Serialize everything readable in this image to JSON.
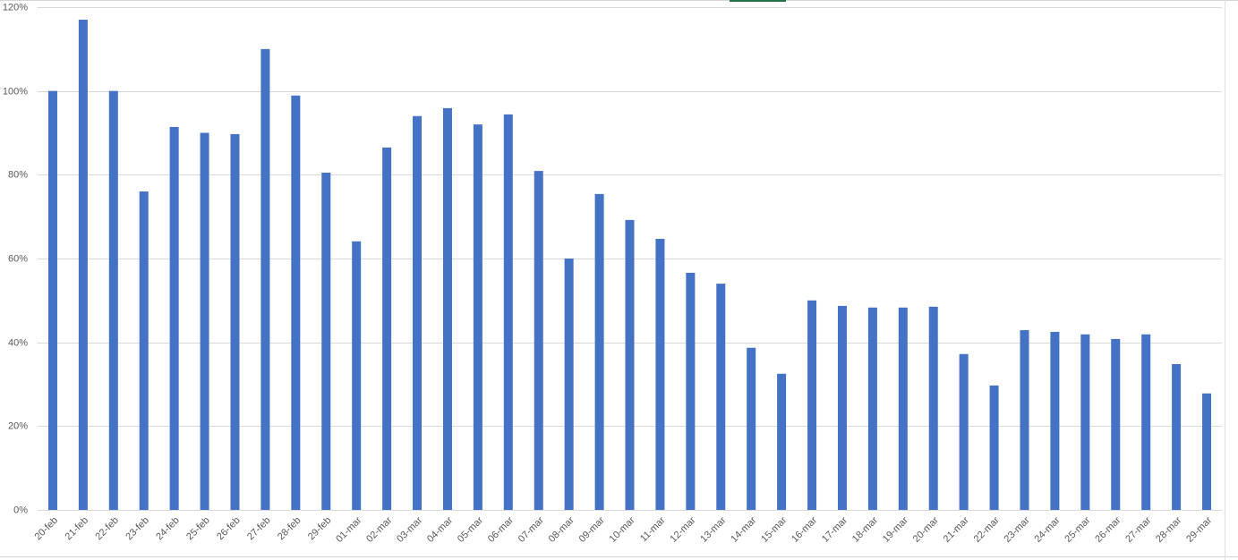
{
  "chart_data": {
    "type": "bar",
    "categories": [
      "20-feb",
      "21-feb",
      "22-feb",
      "23-feb",
      "24-feb",
      "25-feb",
      "26-feb",
      "27-feb",
      "28-feb",
      "29-feb",
      "01-mar",
      "02-mar",
      "03-mar",
      "04-mar",
      "05-mar",
      "06-mar",
      "07-mar",
      "08-mar",
      "09-mar",
      "10-mar",
      "11-mar",
      "12-mar",
      "13-mar",
      "14-mar",
      "15-mar",
      "16-mar",
      "17-mar",
      "18-mar",
      "19-mar",
      "20-mar",
      "21-mar",
      "22-mar",
      "23-mar",
      "24-mar",
      "25-mar",
      "26-mar",
      "27-mar",
      "28-mar",
      "29-mar"
    ],
    "values": [
      100,
      117,
      100,
      76,
      91.4,
      90,
      89.7,
      110,
      98.9,
      80.5,
      64.1,
      86.5,
      94,
      95.9,
      92,
      94.4,
      80.9,
      60,
      75.4,
      69.2,
      64.7,
      56.6,
      54,
      38.7,
      32.5,
      50,
      48.7,
      48.3,
      48.3,
      48.5,
      37.2,
      29.7,
      42.9,
      42.5,
      41.9,
      40.8,
      41.9,
      34.8,
      27.8
    ],
    "color": "#4472c4",
    "ylim": [
      0,
      120
    ],
    "yticks": [
      {
        "value": 0,
        "label": "0%"
      },
      {
        "value": 20,
        "label": "20%"
      },
      {
        "value": 40,
        "label": "40%"
      },
      {
        "value": 60,
        "label": "60%"
      },
      {
        "value": 80,
        "label": "80%"
      },
      {
        "value": 100,
        "label": "100%"
      },
      {
        "value": 120,
        "label": "120%"
      }
    ],
    "grid": true
  }
}
